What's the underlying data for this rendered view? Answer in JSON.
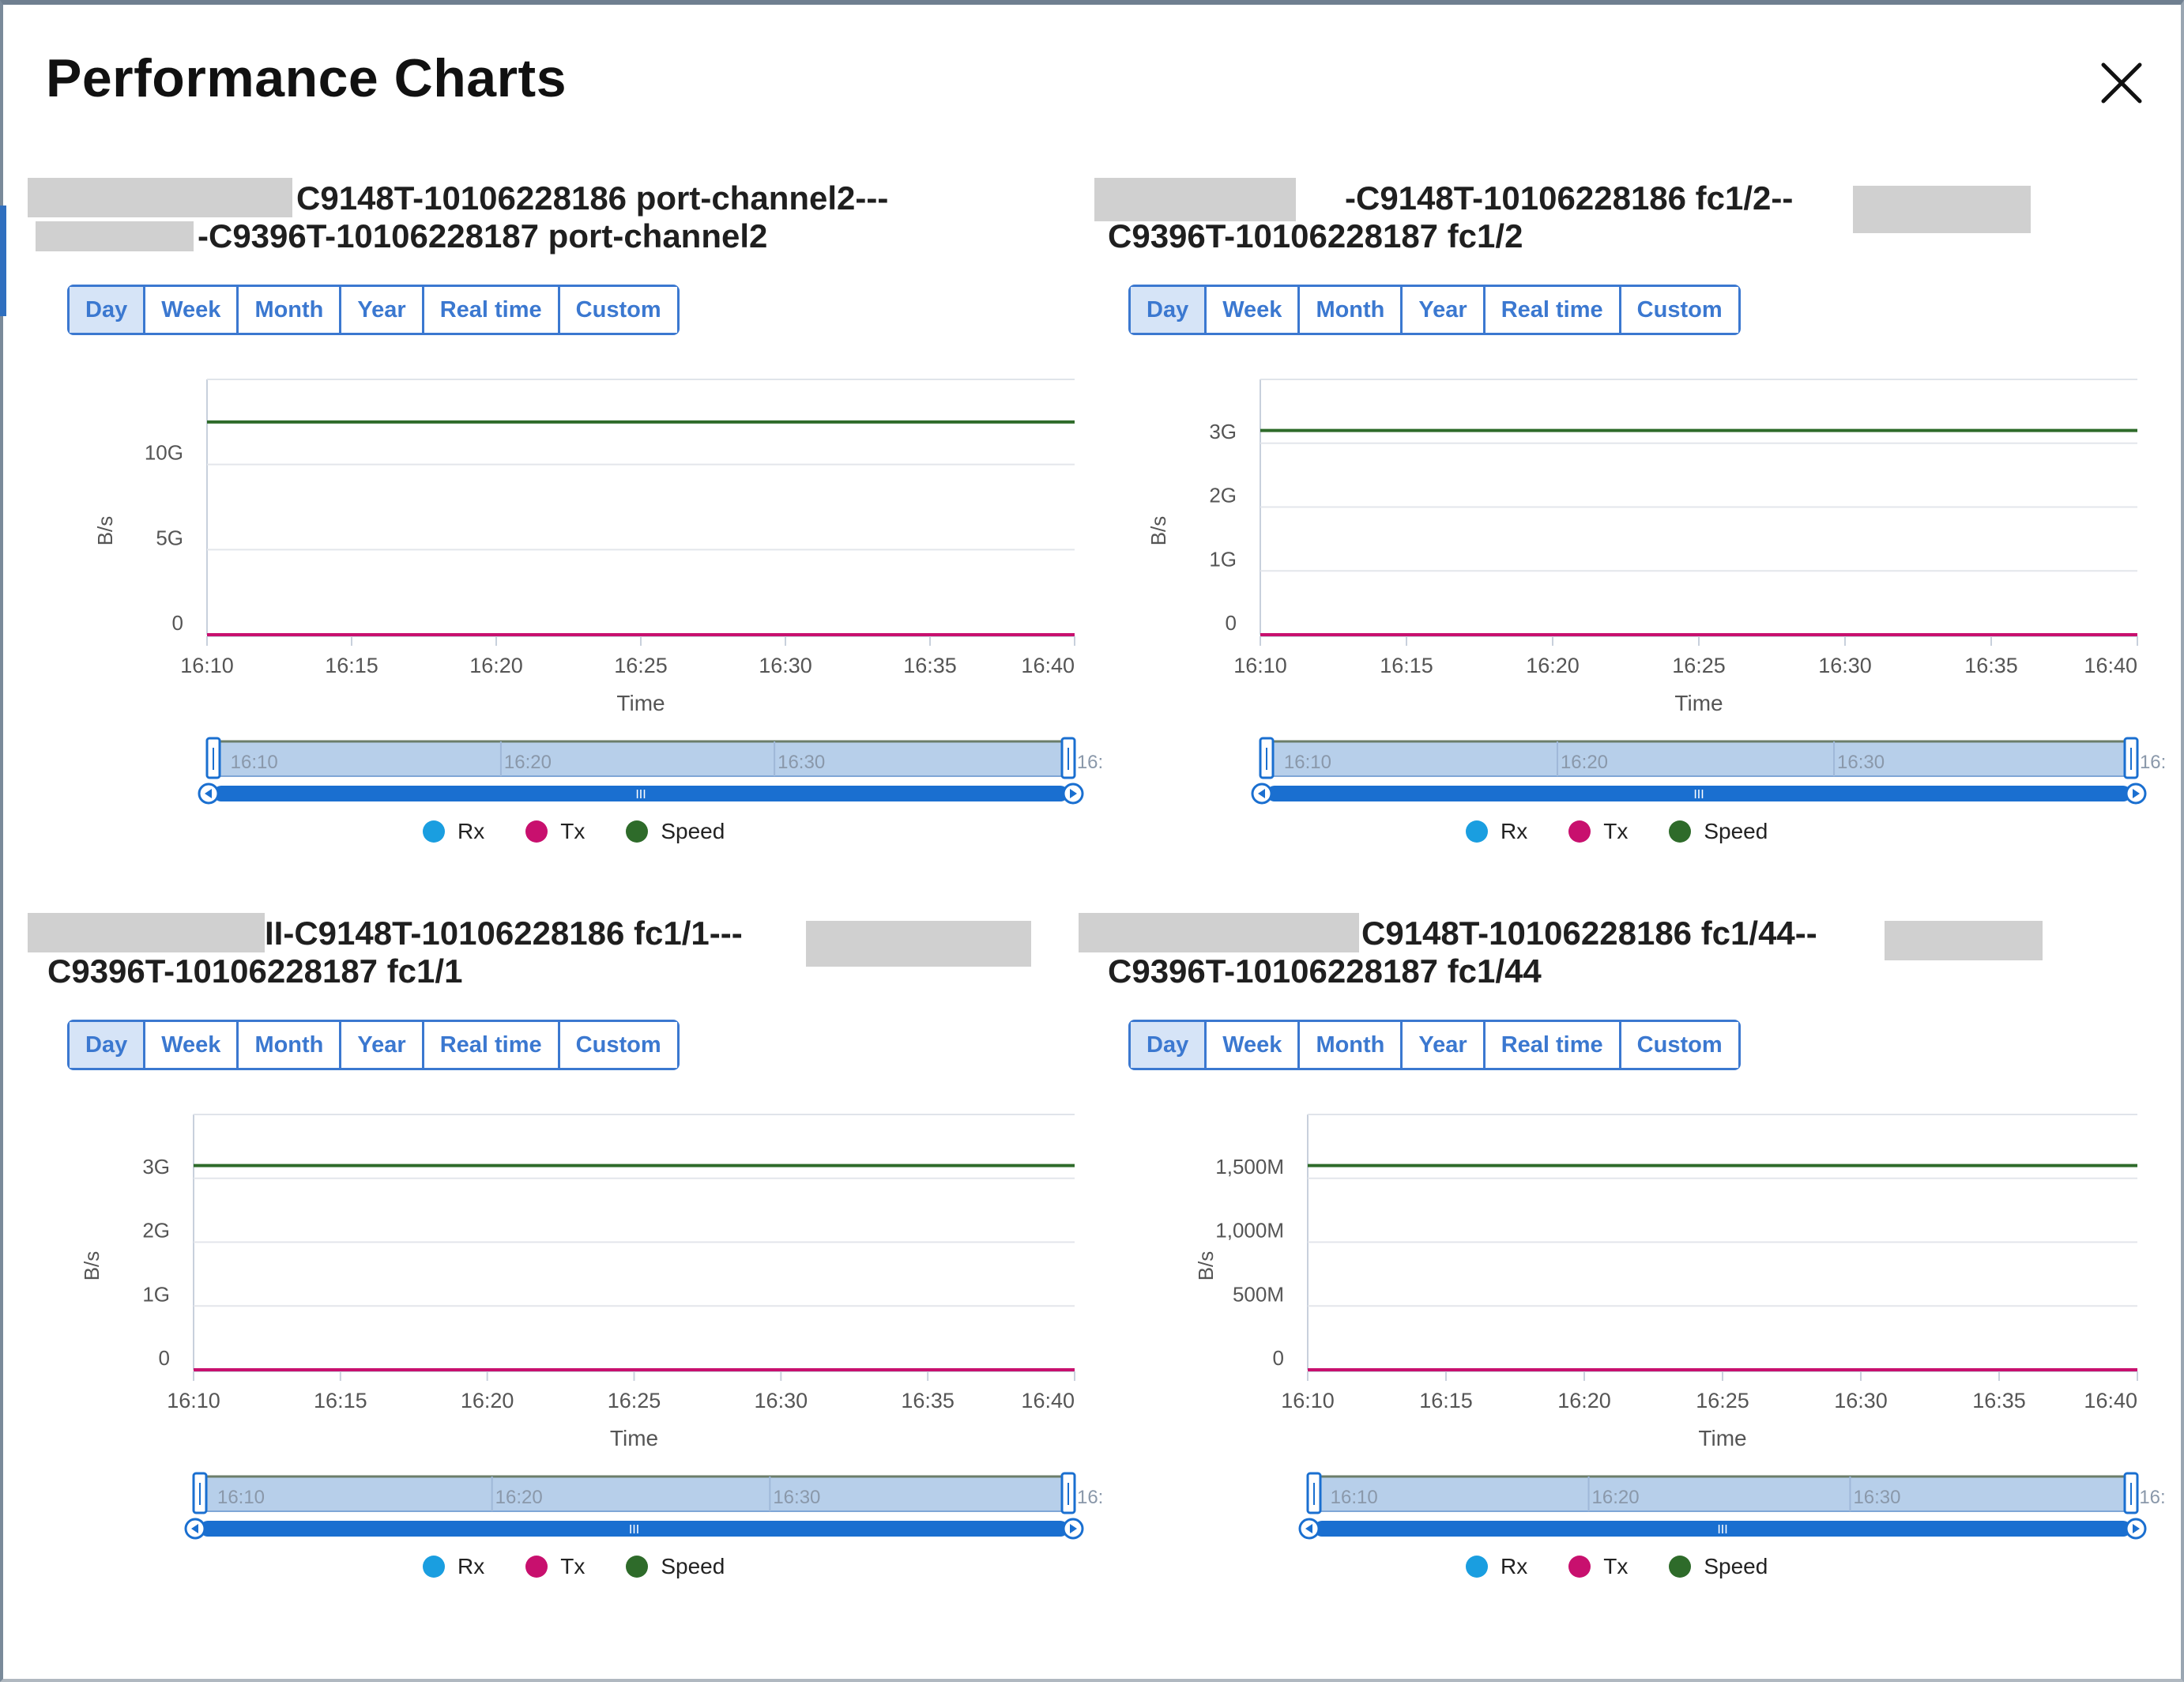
{
  "dialog": {
    "title": "Performance Charts"
  },
  "range_buttons": [
    "Day",
    "Week",
    "Month",
    "Year",
    "Real time",
    "Custom"
  ],
  "legend": [
    {
      "label": "Rx",
      "color": "#1a9ee0"
    },
    {
      "label": "Tx",
      "color": "#c8106e"
    },
    {
      "label": "Speed",
      "color": "#2e6b2a"
    }
  ],
  "panels": [
    {
      "title_line1": "C9148T-10106228186 port-channel2---",
      "title_line2": "-C9396T-10106228187 port-channel2",
      "active_range": "Day",
      "chart_data": {
        "type": "line",
        "ylabel": "B/s",
        "xlabel": "Time",
        "x_ticks": [
          "16:10",
          "16:15",
          "16:20",
          "16:25",
          "16:30",
          "16:35",
          "16:40"
        ],
        "y_ticks": [
          "0",
          "5G",
          "10G"
        ],
        "ylim": [
          0,
          15
        ],
        "y_unit": "G",
        "series": [
          {
            "name": "Rx",
            "color": "#1a9ee0",
            "y": [
              0,
              0
            ]
          },
          {
            "name": "Tx",
            "color": "#c8106e",
            "y": [
              0,
              0
            ]
          },
          {
            "name": "Speed",
            "color": "#2e6b2a",
            "y": [
              12.5,
              12.5
            ]
          }
        ],
        "navigator_ticks": [
          "16:10",
          "16:20",
          "16:30",
          "16:"
        ]
      }
    },
    {
      "title_line1": "-C9148T-10106228186 fc1/2--",
      "title_line2": "C9396T-10106228187 fc1/2",
      "active_range": "Day",
      "chart_data": {
        "type": "line",
        "ylabel": "B/s",
        "xlabel": "Time",
        "x_ticks": [
          "16:10",
          "16:15",
          "16:20",
          "16:25",
          "16:30",
          "16:35",
          "16:40"
        ],
        "y_ticks": [
          "0",
          "1G",
          "2G",
          "3G"
        ],
        "ylim": [
          0,
          4
        ],
        "y_unit": "G",
        "series": [
          {
            "name": "Rx",
            "color": "#1a9ee0",
            "y": [
              0,
              0
            ]
          },
          {
            "name": "Tx",
            "color": "#c8106e",
            "y": [
              0,
              0
            ]
          },
          {
            "name": "Speed",
            "color": "#2e6b2a",
            "y": [
              3.2,
              3.2
            ]
          }
        ],
        "navigator_ticks": [
          "16:10",
          "16:20",
          "16:30",
          "16:"
        ]
      }
    },
    {
      "title_line1": "II-C9148T-10106228186 fc1/1---",
      "title_line2": "C9396T-10106228187 fc1/1",
      "active_range": "Day",
      "chart_data": {
        "type": "line",
        "ylabel": "B/s",
        "xlabel": "Time",
        "x_ticks": [
          "16:10",
          "16:15",
          "16:20",
          "16:25",
          "16:30",
          "16:35",
          "16:40"
        ],
        "y_ticks": [
          "0",
          "1G",
          "2G",
          "3G"
        ],
        "ylim": [
          0,
          4
        ],
        "y_unit": "G",
        "series": [
          {
            "name": "Rx",
            "color": "#1a9ee0",
            "y": [
              0,
              0
            ]
          },
          {
            "name": "Tx",
            "color": "#c8106e",
            "y": [
              0,
              0
            ]
          },
          {
            "name": "Speed",
            "color": "#2e6b2a",
            "y": [
              3.2,
              3.2
            ]
          }
        ],
        "navigator_ticks": [
          "16:10",
          "16:20",
          "16:30",
          "16:"
        ]
      }
    },
    {
      "title_line1": "C9148T-10106228186 fc1/44--",
      "title_line2": "C9396T-10106228187 fc1/44",
      "active_range": "Day",
      "chart_data": {
        "type": "line",
        "ylabel": "B/s",
        "xlabel": "Time",
        "x_ticks": [
          "16:10",
          "16:15",
          "16:20",
          "16:25",
          "16:30",
          "16:35",
          "16:40"
        ],
        "y_ticks": [
          "0",
          "500M",
          "1,000M",
          "1,500M"
        ],
        "ylim": [
          0,
          2000
        ],
        "y_unit": "M",
        "series": [
          {
            "name": "Rx",
            "color": "#1a9ee0",
            "y": [
              0,
              0
            ]
          },
          {
            "name": "Tx",
            "color": "#c8106e",
            "y": [
              0,
              0
            ]
          },
          {
            "name": "Speed",
            "color": "#2e6b2a",
            "y": [
              1600,
              1600
            ]
          }
        ],
        "navigator_ticks": [
          "16:10",
          "16:20",
          "16:30",
          "16:"
        ]
      }
    }
  ]
}
